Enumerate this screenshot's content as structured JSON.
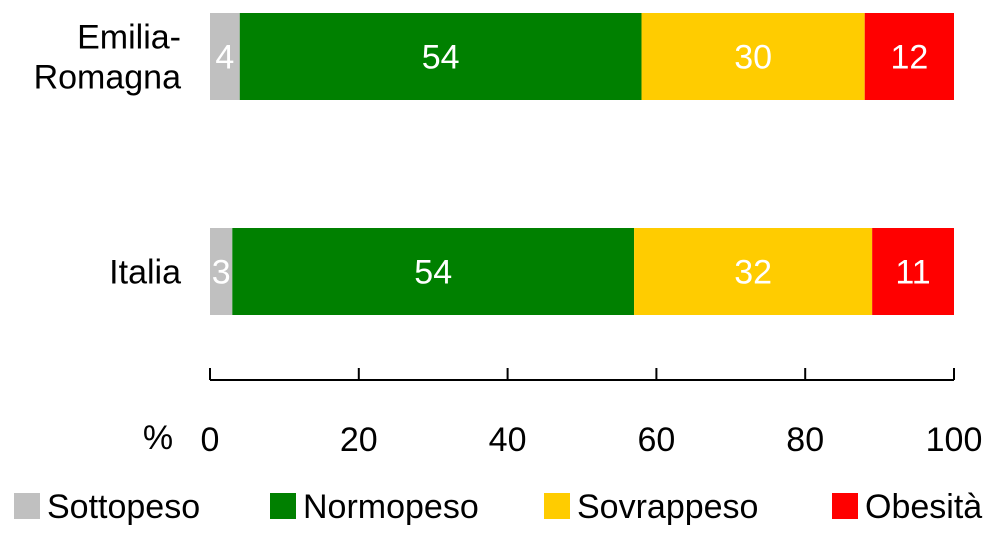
{
  "chart_data": {
    "type": "bar",
    "orientation": "horizontal",
    "stacked": true,
    "categories": [
      "Emilia-Romagna",
      "Italia"
    ],
    "category_lines": [
      [
        "Emilia-",
        "Romagna"
      ],
      [
        "Italia"
      ]
    ],
    "series": [
      {
        "name": "Sottopeso",
        "color": "#c0c0c0",
        "values": [
          4,
          3
        ]
      },
      {
        "name": "Normopeso",
        "color": "#008000",
        "values": [
          54,
          54
        ]
      },
      {
        "name": "Sovrappeso",
        "color": "#ffcc00",
        "values": [
          30,
          32
        ]
      },
      {
        "name": "Obesità",
        "color": "#ff0000",
        "values": [
          12,
          11
        ]
      }
    ],
    "x_unit_label": "%",
    "xlim": [
      0,
      100
    ],
    "x_ticks": [
      0,
      20,
      40,
      60,
      80,
      100
    ],
    "data_label_color": "#ffffff",
    "grid": false,
    "legend_position": "bottom"
  }
}
